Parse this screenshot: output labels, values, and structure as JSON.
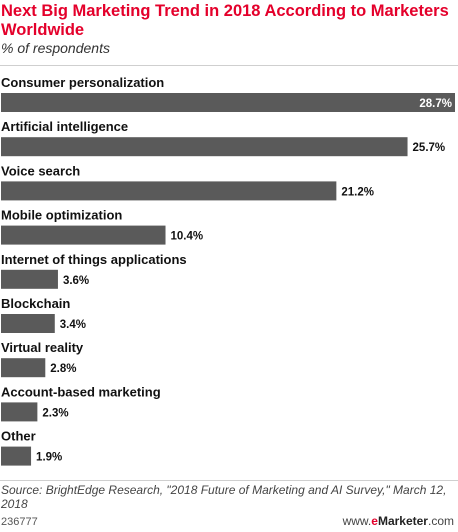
{
  "header": {
    "title": "Next Big Marketing Trend in 2018 According to Marketers Worldwide",
    "subtitle": "% of respondents"
  },
  "chart_data": {
    "type": "bar",
    "orientation": "horizontal",
    "title": "Next Big Marketing Trend in 2018 According to Marketers Worldwide",
    "subtitle": "% of respondents",
    "categories": [
      "Consumer personalization",
      "Artificial intelligence",
      "Voice search",
      "Mobile optimization",
      "Internet of things applications",
      "Blockchain",
      "Virtual reality",
      "Account-based marketing",
      "Other"
    ],
    "values": [
      28.7,
      25.7,
      21.2,
      10.4,
      3.6,
      3.4,
      2.8,
      2.3,
      1.9
    ],
    "value_labels": [
      "28.7%",
      "25.7%",
      "21.2%",
      "10.4%",
      "3.6%",
      "3.4%",
      "2.8%",
      "2.3%",
      "1.9%"
    ],
    "unit": "%",
    "xlim": [
      0,
      28.7
    ],
    "grid": false,
    "legend": "none",
    "bar_color": "#5a5a5a",
    "inside_label_color": "#ffffff"
  },
  "footer": {
    "source": "Source: BrightEdge Research, \"2018 Future of Marketing and AI Survey,\" March 12, 2018",
    "chart_id": "236777",
    "brand_prefix": "www.",
    "brand_e": "e",
    "brand_name": "Marketer",
    "brand_suffix": ".com"
  },
  "colors": {
    "title": "#e4002b",
    "bar": "#5a5a5a",
    "brand_accent": "#e4002b"
  }
}
